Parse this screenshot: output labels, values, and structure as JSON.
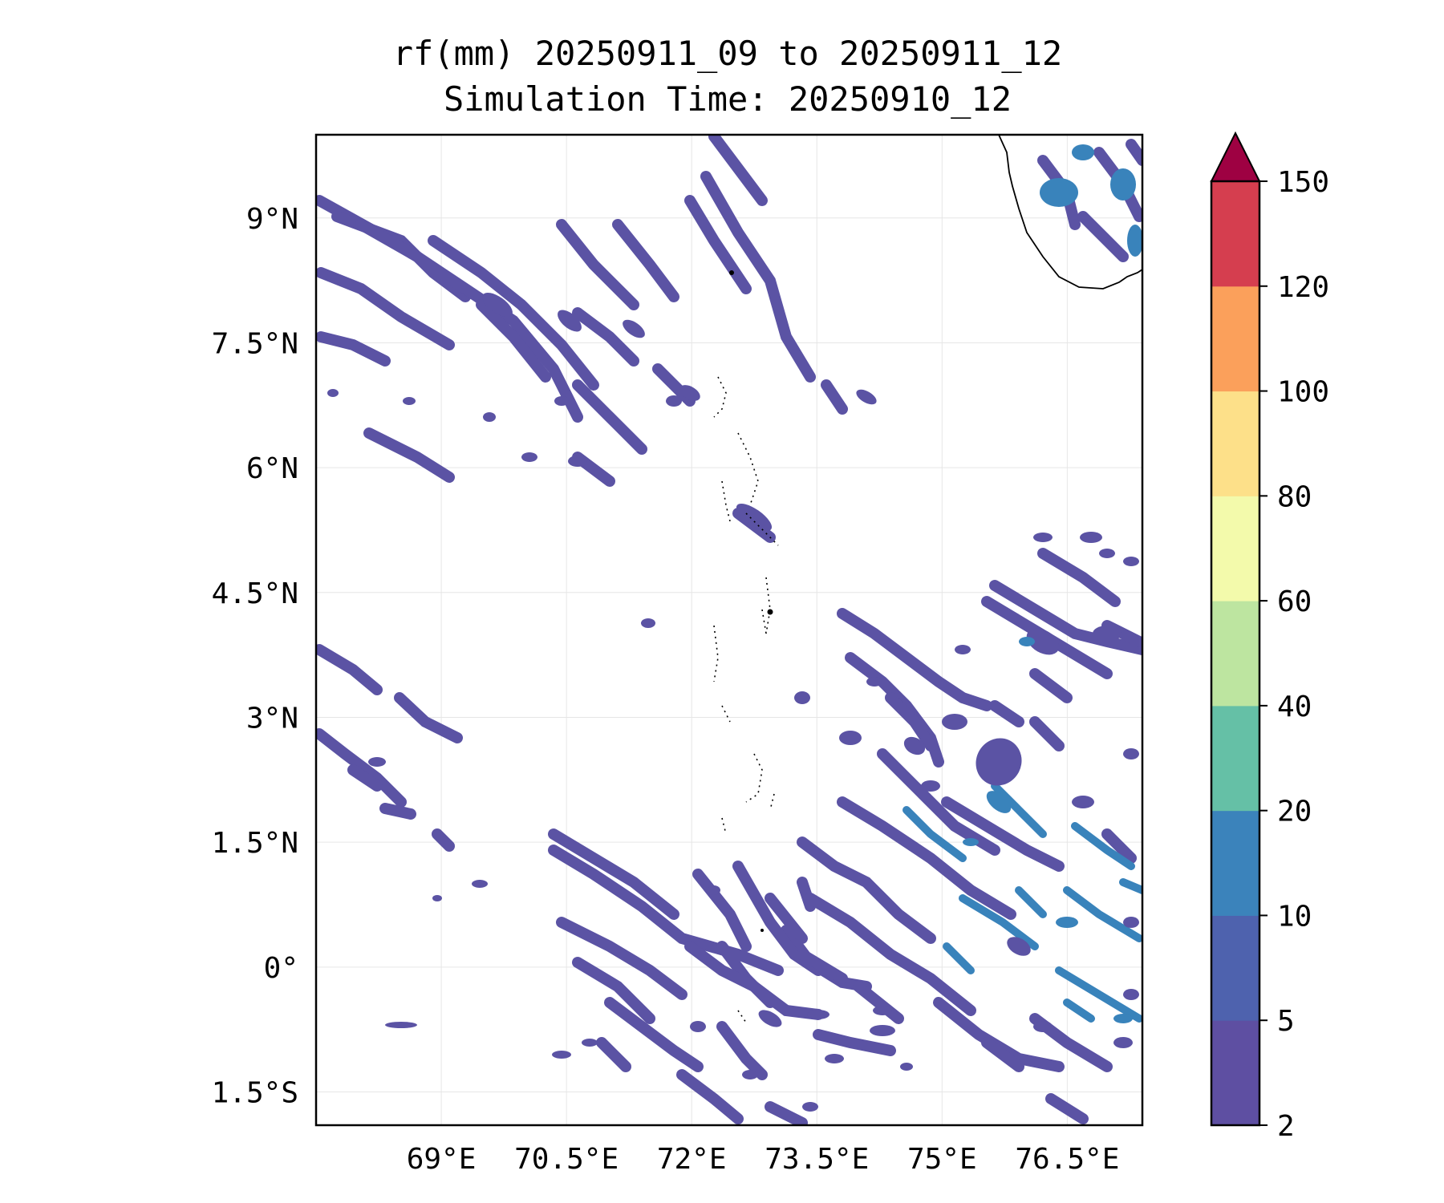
{
  "title": {
    "line1": "rf(mm) 20250911_09 to 20250911_12",
    "line2": "Simulation Time: 20250910_12"
  },
  "map": {
    "lon_range": [
      67.5,
      77.4
    ],
    "lat_range": [
      -1.9,
      10.0
    ],
    "lat_ticks": [
      {
        "value": 9.0,
        "label": "9°N"
      },
      {
        "value": 7.5,
        "label": "7.5°N"
      },
      {
        "value": 6.0,
        "label": "6°N"
      },
      {
        "value": 4.5,
        "label": "4.5°N"
      },
      {
        "value": 3.0,
        "label": "3°N"
      },
      {
        "value": 1.5,
        "label": "1.5°N"
      },
      {
        "value": 0.0,
        "label": "0°"
      },
      {
        "value": -1.5,
        "label": "1.5°S"
      }
    ],
    "lon_ticks": [
      {
        "value": 69.0,
        "label": "69°E"
      },
      {
        "value": 70.5,
        "label": "70.5°E"
      },
      {
        "value": 72.0,
        "label": "72°E"
      },
      {
        "value": 73.5,
        "label": "73.5°E"
      },
      {
        "value": 75.0,
        "label": "75°E"
      },
      {
        "value": 76.5,
        "label": "76.5°E"
      }
    ],
    "grid": true,
    "fill_color": "#5b53a4",
    "heavy_fill_color": "#3983bb",
    "coast_color": "#000000"
  },
  "colorbar": {
    "levels": [
      {
        "label": "2",
        "color": "#5e4fa2"
      },
      {
        "label": "5",
        "color": "#4e62ae"
      },
      {
        "label": "10",
        "color": "#3b83bb"
      },
      {
        "label": "20",
        "color": "#65c0a6"
      },
      {
        "label": "40",
        "color": "#bde5a0"
      },
      {
        "label": "60",
        "color": "#f3faab"
      },
      {
        "label": "80",
        "color": "#fde089"
      },
      {
        "label": "100",
        "color": "#fba05b"
      },
      {
        "label": "120",
        "color": "#d53e4f"
      },
      {
        "label": "150",
        "color": ""
      }
    ],
    "extend_color": "#9e0142"
  }
}
